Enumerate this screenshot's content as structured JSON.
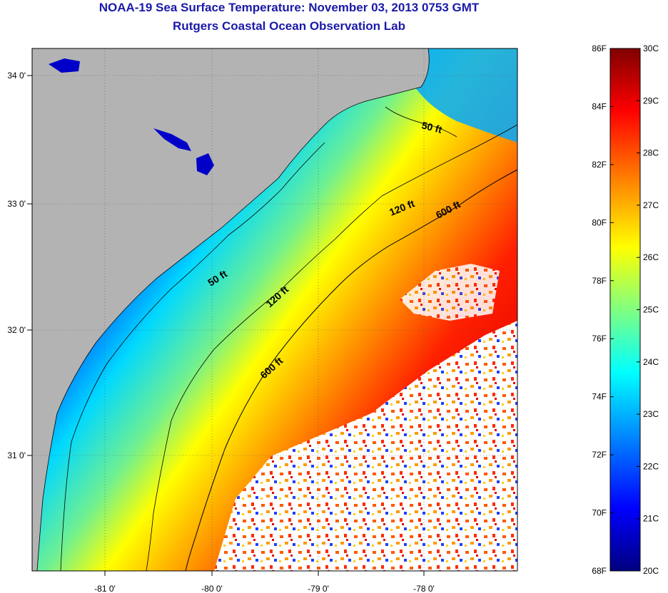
{
  "title": "NOAA-19 Sea Surface Temperature:  November 03, 2013 0753 GMT",
  "subtitle": "Rutgers Coastal Ocean Observation Lab",
  "map": {
    "lon_ticks": [
      "-81 0'",
      "-80 0'",
      "-79 0'",
      "-78 0'"
    ],
    "lat_ticks": [
      "34 0'",
      "33 0'",
      "32 0'",
      "31 0'"
    ],
    "land_color": "#b3b3b3",
    "cloud_color": "#ffffff",
    "isobaths": [
      {
        "depth": "50 ft",
        "label_north": "50 ft",
        "label_south": "50 ft"
      },
      {
        "depth": "120 ft",
        "label_north": "120 ft",
        "label_south": "120 ft"
      },
      {
        "depth": "600 ft",
        "label_north": "600 ft",
        "label_south": "600 ft"
      }
    ]
  },
  "colorbar": {
    "fahrenheit": [
      "86F",
      "84F",
      "82F",
      "80F",
      "78F",
      "76F",
      "74F",
      "72F",
      "70F",
      "68F"
    ],
    "celsius": [
      "30C",
      "29C",
      "28C",
      "27C",
      "26C",
      "25C",
      "24C",
      "23C",
      "22C",
      "21C",
      "20C"
    ],
    "colors": [
      "#000080",
      "#0000ff",
      "#0080ff",
      "#00ffff",
      "#80ff80",
      "#ffff00",
      "#ff8000",
      "#ff0000",
      "#800000"
    ]
  }
}
